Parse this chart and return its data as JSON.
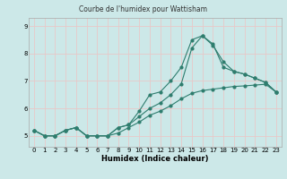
{
  "title": "Courbe de l'humidex pour Wattisham",
  "xlabel": "Humidex (Indice chaleur)",
  "xlim": [
    -0.5,
    23.5
  ],
  "ylim": [
    4.6,
    9.3
  ],
  "yticks": [
    5,
    6,
    7,
    8,
    9
  ],
  "xticks": [
    0,
    1,
    2,
    3,
    4,
    5,
    6,
    7,
    8,
    9,
    10,
    11,
    12,
    13,
    14,
    15,
    16,
    17,
    18,
    19,
    20,
    21,
    22,
    23
  ],
  "bg_color": "#cce8e8",
  "line_color": "#2e7d6e",
  "grid_color": "#e8c8c8",
  "line1_x": [
    0,
    1,
    2,
    3,
    4,
    5,
    6,
    7,
    8,
    9,
    10,
    11,
    12,
    13,
    14,
    15,
    16,
    17,
    18,
    19,
    20,
    21,
    22,
    23
  ],
  "line1_y": [
    5.2,
    5.0,
    5.0,
    5.2,
    5.3,
    5.0,
    5.0,
    5.0,
    5.3,
    5.4,
    5.9,
    6.5,
    6.6,
    7.0,
    7.5,
    8.5,
    8.65,
    8.3,
    7.7,
    7.35,
    7.25,
    7.1,
    6.95,
    6.6
  ],
  "line2_x": [
    0,
    1,
    2,
    3,
    4,
    5,
    6,
    7,
    8,
    9,
    10,
    11,
    12,
    13,
    14,
    15,
    16,
    17,
    18,
    19,
    20,
    21,
    22,
    23
  ],
  "line2_y": [
    5.2,
    5.0,
    5.0,
    5.2,
    5.3,
    5.0,
    5.0,
    5.0,
    5.3,
    5.4,
    5.7,
    6.0,
    6.2,
    6.5,
    6.9,
    8.2,
    8.65,
    8.35,
    7.5,
    7.35,
    7.25,
    7.1,
    6.95,
    6.6
  ],
  "line3_x": [
    0,
    1,
    2,
    3,
    4,
    5,
    6,
    7,
    8,
    9,
    10,
    11,
    12,
    13,
    14,
    15,
    16,
    17,
    18,
    19,
    20,
    21,
    22,
    23
  ],
  "line3_y": [
    5.2,
    5.0,
    5.0,
    5.2,
    5.3,
    5.0,
    5.0,
    5.0,
    5.1,
    5.3,
    5.5,
    5.75,
    5.9,
    6.1,
    6.35,
    6.55,
    6.65,
    6.7,
    6.75,
    6.8,
    6.82,
    6.85,
    6.88,
    6.6
  ]
}
